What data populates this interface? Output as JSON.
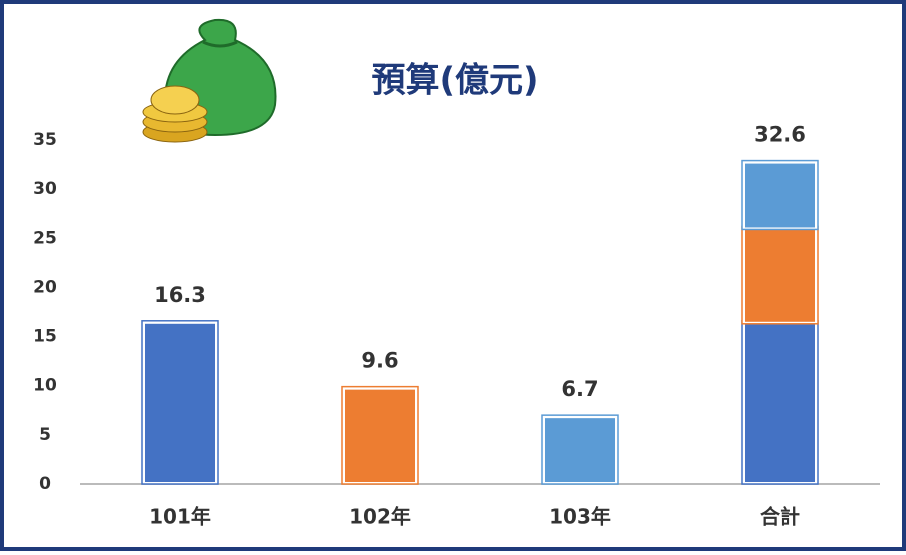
{
  "chart_data": {
    "type": "bar",
    "title": "預算(億元)",
    "categories": [
      "101年",
      "102年",
      "103年",
      "合計"
    ],
    "series": [
      {
        "color": "#4472c4",
        "values": [
          16.3,
          null,
          null,
          16.3
        ]
      },
      {
        "color": "#ed7d31",
        "values": [
          null,
          9.6,
          null,
          9.6
        ]
      },
      {
        "color": "#5b9bd5",
        "values": [
          null,
          null,
          6.7,
          6.7
        ]
      }
    ],
    "totals": [
      16.3,
      9.6,
      6.7,
      32.6
    ],
    "ylim": [
      0,
      35
    ],
    "yticks": [
      0,
      5,
      10,
      15,
      20,
      25,
      30,
      35
    ],
    "grid": false
  }
}
